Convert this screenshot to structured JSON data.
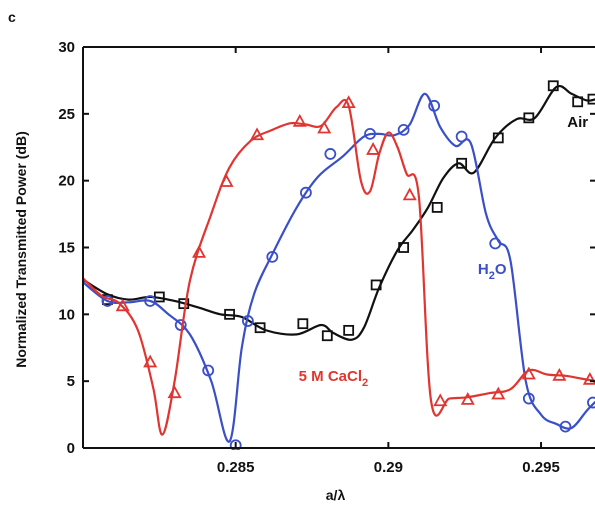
{
  "chart_data": {
    "type": "line",
    "panel_label": "c",
    "xlabel": "a/λ",
    "ylabel": "Normalized Transmitted Power (dB)",
    "xlim": [
      0.28,
      0.2968
    ],
    "ylim": [
      0,
      30
    ],
    "x_ticks": [
      0.285,
      0.29,
      0.295
    ],
    "x_tick_labels": [
      "0.285",
      "0.29",
      "0.295"
    ],
    "y_ticks": [
      0,
      5,
      10,
      15,
      20,
      25,
      30
    ],
    "y_tick_labels": [
      "0",
      "5",
      "10",
      "15",
      "20",
      "25",
      "30"
    ],
    "grid": false,
    "series": [
      {
        "name": "Air",
        "label": "Air",
        "label_at": [
          0.2962,
          24.0
        ],
        "color": "#111111",
        "marker": "square",
        "x": [
          0.28,
          0.2808,
          0.2815,
          0.2822,
          0.283,
          0.2838,
          0.2845,
          0.2852,
          0.286,
          0.287,
          0.2878,
          0.2882,
          0.2888,
          0.2892,
          0.2897,
          0.2903,
          0.2908,
          0.2913,
          0.2918,
          0.2923,
          0.2928,
          0.2935,
          0.2942,
          0.2948,
          0.2955,
          0.296,
          0.2965,
          0.2968
        ],
        "y": [
          12.6,
          11.5,
          11.1,
          11.3,
          11.0,
          10.5,
          10.0,
          9.8,
          8.8,
          8.5,
          9.2,
          8.6,
          8.1,
          9.0,
          12.0,
          14.8,
          16.3,
          18.0,
          20.2,
          21.3,
          20.6,
          23.2,
          24.6,
          24.7,
          27.0,
          26.5,
          26.0,
          26.1
        ],
        "marker_x": [
          0.2808,
          0.2825,
          0.2833,
          0.2848,
          0.2858,
          0.2872,
          0.288,
          0.2887,
          0.2896,
          0.2905,
          0.2916,
          0.2924,
          0.2936,
          0.2946,
          0.2954,
          0.2962,
          0.2967
        ],
        "marker_y": [
          11.1,
          11.3,
          10.8,
          10.0,
          9.0,
          9.3,
          8.4,
          8.8,
          12.2,
          15.0,
          18.0,
          21.3,
          23.2,
          24.7,
          27.1,
          25.9,
          26.1
        ]
      },
      {
        "name": "H2O",
        "label": "H",
        "label_sub": "2",
        "label_tail": "O",
        "label_at": [
          0.2934,
          13.0
        ],
        "color": "#3a4fc8",
        "marker": "circle",
        "x": [
          0.28,
          0.2808,
          0.2815,
          0.2822,
          0.2828,
          0.2835,
          0.2842,
          0.2848,
          0.2852,
          0.2856,
          0.2862,
          0.287,
          0.2877,
          0.2885,
          0.2892,
          0.2897,
          0.2902,
          0.2907,
          0.2912,
          0.2917,
          0.2922,
          0.2927,
          0.2932,
          0.2936,
          0.294,
          0.2945,
          0.295,
          0.2955,
          0.296,
          0.2965,
          0.2968
        ],
        "y": [
          12.4,
          11.0,
          10.9,
          11.0,
          10.0,
          8.5,
          5.0,
          0.5,
          7.5,
          11.5,
          14.5,
          18.0,
          20.3,
          21.8,
          23.3,
          23.5,
          23.4,
          24.2,
          26.5,
          24.0,
          22.6,
          22.8,
          17.5,
          15.5,
          14.0,
          5.0,
          2.5,
          1.8,
          1.5,
          2.8,
          3.5
        ],
        "marker_x": [
          0.2808,
          0.2822,
          0.2832,
          0.2841,
          0.285,
          0.2854,
          0.2862,
          0.2873,
          0.2881,
          0.2894,
          0.2905,
          0.2915,
          0.2924,
          0.2935,
          0.2946,
          0.2958,
          0.2967
        ],
        "marker_y": [
          11.0,
          11.0,
          9.2,
          5.8,
          0.2,
          9.5,
          14.3,
          19.1,
          22.0,
          23.5,
          23.8,
          25.6,
          23.3,
          15.3,
          3.7,
          1.6,
          3.4
        ]
      },
      {
        "name": "5 M CaCl2",
        "label": "5 M CaCl",
        "label_sub": "2",
        "label_tail": "",
        "label_at": [
          0.2882,
          5.0
        ],
        "color": "#e03530",
        "marker": "triangle",
        "x": [
          0.28,
          0.2806,
          0.2812,
          0.2818,
          0.2823,
          0.2826,
          0.283,
          0.2835,
          0.2842,
          0.2848,
          0.2855,
          0.2862,
          0.2868,
          0.2873,
          0.2878,
          0.2883,
          0.2887,
          0.2891,
          0.2894,
          0.2897,
          0.29,
          0.2903,
          0.2906,
          0.291,
          0.2914,
          0.292,
          0.2926,
          0.2933,
          0.294,
          0.2946,
          0.2952,
          0.2958,
          0.2963,
          0.2968
        ],
        "y": [
          12.7,
          11.4,
          10.8,
          8.8,
          4.5,
          1.0,
          5.0,
          12.5,
          17.5,
          21.0,
          23.0,
          23.8,
          24.3,
          24.2,
          24.1,
          25.5,
          25.6,
          20.0,
          19.2,
          22.0,
          23.6,
          22.5,
          20.5,
          18.8,
          3.5,
          3.7,
          3.8,
          4.1,
          4.4,
          5.8,
          5.5,
          5.4,
          5.2,
          5.0
        ],
        "marker_x": [
          0.2813,
          0.2822,
          0.283,
          0.2838,
          0.2847,
          0.2857,
          0.2871,
          0.2879,
          0.2887,
          0.2895,
          0.2907,
          0.2917,
          0.2926,
          0.2936,
          0.2946,
          0.2956,
          0.2966
        ],
        "marker_y": [
          10.6,
          6.4,
          4.1,
          14.6,
          19.9,
          23.4,
          24.4,
          23.9,
          25.8,
          22.3,
          18.9,
          3.5,
          3.6,
          4.0,
          5.5,
          5.4,
          5.1
        ]
      }
    ]
  }
}
